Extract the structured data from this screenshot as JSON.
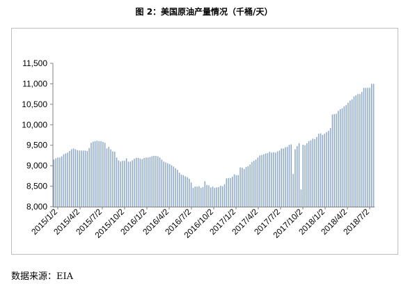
{
  "chart_data": {
    "type": "bar",
    "title": "图 2：美国原油产量情况（千桶/天）",
    "bar_color": "#8ea9c8",
    "grid": false,
    "ylim": [
      8000,
      11500
    ],
    "yticks": [
      "8,000",
      "8,500",
      "9,000",
      "9,500",
      "10,000",
      "10,500",
      "11,000",
      "11,500"
    ],
    "ytick_values": [
      8000,
      8500,
      9000,
      9500,
      10000,
      10500,
      11000,
      11500
    ],
    "xtick_labels": [
      "2015/1/2",
      "2015/4/2",
      "2015/7/2",
      "2015/10/2",
      "2016/1/2",
      "2016/4/2",
      "2016/7/2",
      "2016/10/2",
      "2017/1/2",
      "2017/4/2",
      "2017/7/2",
      "2017/10/2",
      "2018/1/2",
      "2018/4/2",
      "2018/7/2"
    ],
    "values": [
      9150,
      9180,
      9200,
      9200,
      9230,
      9280,
      9300,
      9320,
      9360,
      9400,
      9420,
      9400,
      9380,
      9370,
      9370,
      9370,
      9370,
      9360,
      9430,
      9560,
      9590,
      9600,
      9610,
      9600,
      9600,
      9580,
      9560,
      9420,
      9460,
      9400,
      9350,
      9340,
      9200,
      9130,
      9100,
      9120,
      9120,
      9180,
      9100,
      9100,
      9130,
      9170,
      9190,
      9190,
      9170,
      9160,
      9190,
      9200,
      9200,
      9210,
      9230,
      9240,
      9240,
      9230,
      9200,
      9150,
      9100,
      9080,
      9060,
      9040,
      9010,
      8980,
      8940,
      8900,
      8830,
      8780,
      8770,
      8740,
      8720,
      8680,
      8590,
      8460,
      8490,
      8490,
      8500,
      8460,
      8480,
      8620,
      8530,
      8520,
      8470,
      8490,
      8460,
      8470,
      8480,
      8510,
      8500,
      8550,
      8690,
      8700,
      8700,
      8730,
      8790,
      8770,
      8770,
      8960,
      8950,
      8920,
      8970,
      8990,
      9030,
      9090,
      9120,
      9150,
      9200,
      9250,
      9260,
      9280,
      9300,
      9310,
      9340,
      9320,
      9330,
      9320,
      9350,
      9370,
      9420,
      9420,
      9450,
      9460,
      9510,
      9520,
      8800,
      9400,
      9480,
      9550,
      8420,
      9510,
      9500,
      9550,
      9600,
      9620,
      9660,
      9650,
      9700,
      9780,
      9790,
      9750,
      9780,
      9820,
      9850,
      9920,
      10250,
      10260,
      10270,
      10340,
      10380,
      10400,
      10450,
      10480,
      10540,
      10590,
      10620,
      10690,
      10720,
      10750,
      10750,
      10800,
      10900,
      10900,
      10900,
      10900,
      11000,
      11000
    ]
  },
  "source": "数据来源：EIA"
}
